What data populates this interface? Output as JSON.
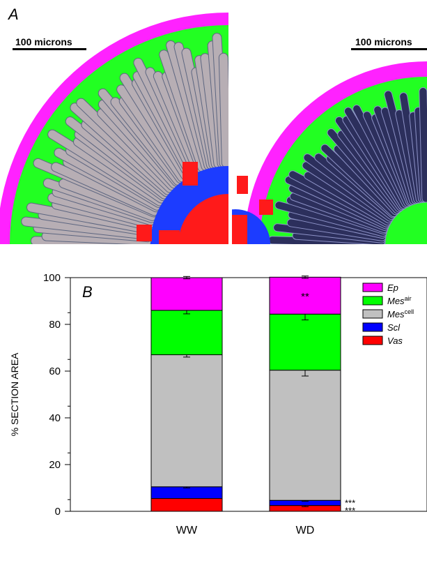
{
  "panel_a": {
    "letter": "A",
    "scale_left": "100 microns",
    "scale_right": "100 microns",
    "colors": {
      "ep": "#ff22ff",
      "mes_air": "#22ff22",
      "mes_cell": "#b7aeb4",
      "scl": "#1c3cff",
      "vas": "#ff1a1a",
      "stain": "#2c2f5c"
    }
  },
  "chart_data": {
    "type": "bar",
    "stacked": true,
    "panel_letter": "B",
    "categories": [
      "WW",
      "WD"
    ],
    "ylabel": "% SECTION AREA",
    "ylim": [
      0,
      100
    ],
    "yticks": [
      0,
      20,
      40,
      60,
      80,
      100
    ],
    "legend_position": "top-right",
    "series": [
      {
        "name": "Vas",
        "name_style": "italic",
        "sup": "",
        "color": "#ff0000",
        "values": [
          5.5,
          2.5
        ],
        "errors": [
          0,
          0.5
        ]
      },
      {
        "name": "Scl",
        "name_style": "italic",
        "sup": "",
        "color": "#0000ff",
        "values": [
          5.0,
          2.2
        ],
        "errors": [
          0.5,
          0.4
        ]
      },
      {
        "name": "Mes",
        "name_style": "italic",
        "sup": "cell",
        "color": "#c0c0c0",
        "values": [
          56.5,
          55.7
        ],
        "errors": [
          1.0,
          2.5
        ]
      },
      {
        "name": "Mes",
        "name_style": "italic",
        "sup": "air",
        "color": "#00ff00",
        "values": [
          19.0,
          24.0
        ],
        "errors": [
          1.5,
          2.5
        ]
      },
      {
        "name": "Ep",
        "name_style": "italic",
        "sup": "",
        "color": "#ff00ff",
        "values": [
          14.0,
          15.8
        ],
        "errors": [
          0.5,
          0.5
        ]
      }
    ],
    "annotations": [
      {
        "text": "**",
        "category": "WD",
        "series": "Ep"
      },
      {
        "text": "***",
        "category": "WD",
        "series": "Scl"
      },
      {
        "text": "***",
        "category": "WD",
        "series": "Vas"
      }
    ]
  }
}
